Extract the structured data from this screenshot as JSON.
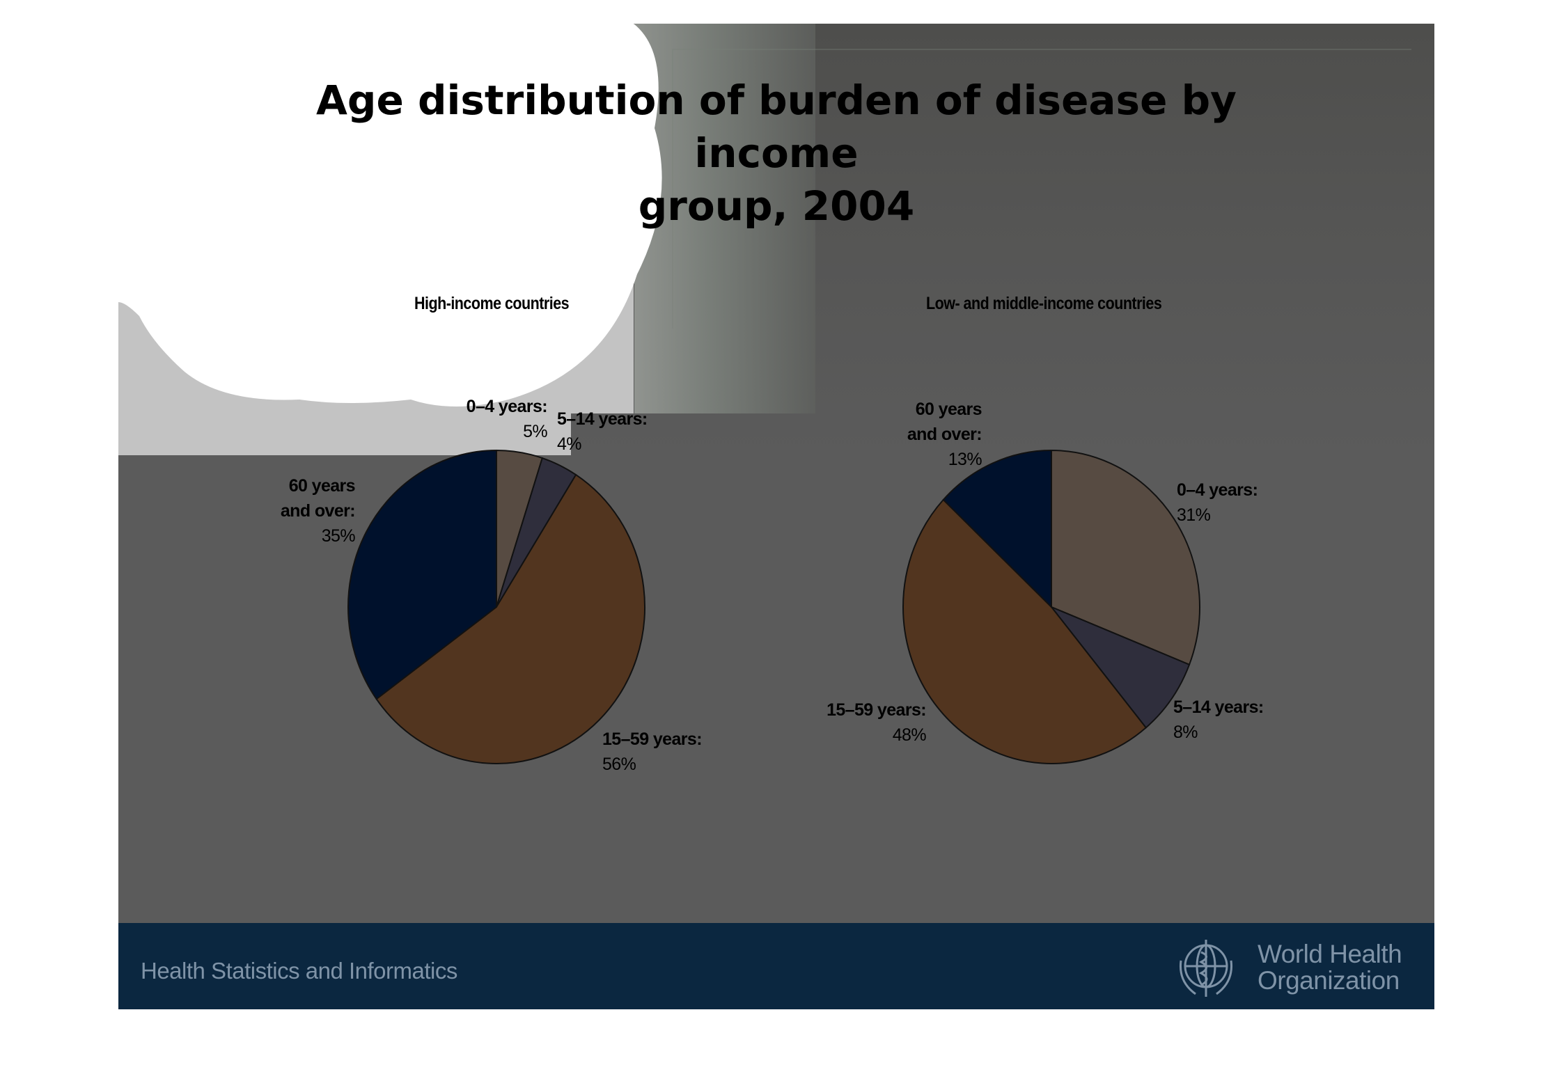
{
  "slide": {
    "title_line1": "Age distribution of burden of disease by income",
    "title_line2": "group, 2004",
    "footer_text": "Health Statistics and Informatics",
    "org_name_line1": "World Health",
    "org_name_line2": "Organization"
  },
  "colors": {
    "age_0_4": "#574b42",
    "age_5_14": "#2f2e3c",
    "age_15_59": "#52351f",
    "age_60_plus": "#00112c",
    "slide_bg": "#5b5b5b",
    "footer_band": "#0b2740"
  },
  "chart_data": [
    {
      "type": "pie",
      "title": "High-income countries",
      "slices": [
        {
          "label": "0–4 years:",
          "pct_text": "5%",
          "value": 5,
          "color_key": "age_0_4"
        },
        {
          "label": "5–14 years:",
          "pct_text": "4%",
          "value": 4,
          "color_key": "age_5_14"
        },
        {
          "label": "15–59 years:",
          "pct_text": "56%",
          "value": 56,
          "color_key": "age_15_59"
        },
        {
          "label_line1": "60 years",
          "label_line2": "and over:",
          "pct_text": "35%",
          "value": 35,
          "color_key": "age_60_plus"
        }
      ]
    },
    {
      "type": "pie",
      "title": "Low- and middle-income countries",
      "slices": [
        {
          "label": "0–4 years:",
          "pct_text": "31%",
          "value": 31,
          "color_key": "age_0_4"
        },
        {
          "label": "5–14 years:",
          "pct_text": "8%",
          "value": 8,
          "color_key": "age_5_14"
        },
        {
          "label": "15–59 years:",
          "pct_text": "48%",
          "value": 48,
          "color_key": "age_15_59"
        },
        {
          "label_line1": "60 years",
          "label_line2": "and over:",
          "pct_text": "13%",
          "value": 13,
          "color_key": "age_60_plus"
        }
      ]
    }
  ]
}
